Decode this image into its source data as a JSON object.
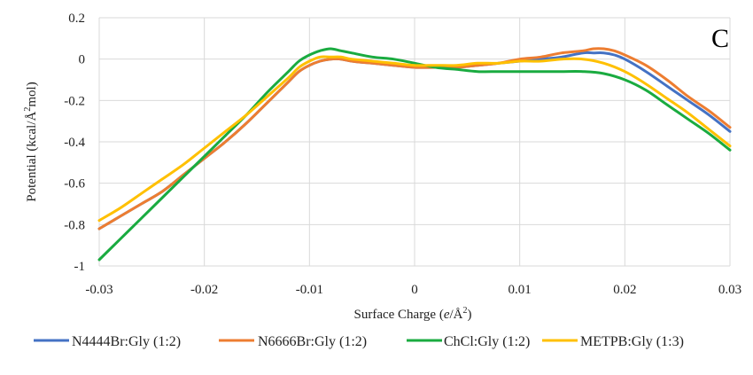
{
  "chart_data": {
    "type": "line",
    "panel_label": "C",
    "xlabel": "Surface Charge (e/Å²)",
    "xlabel_parts": {
      "pre": "Surface Charge (",
      "italic": "e",
      "mid": "/Å",
      "sup": "2",
      "post": ")"
    },
    "ylabel": "Potential (kcal/Å²mol)",
    "ylabel_parts": {
      "pre": "Potential (kcal/Å",
      "sup": "2",
      "post": "mol)"
    },
    "xlim": [
      -0.03,
      0.03
    ],
    "ylim": [
      -1,
      0.2
    ],
    "x_ticks": [
      -0.03,
      -0.02,
      -0.01,
      0,
      0.01,
      0.02,
      0.03
    ],
    "x_tick_labels": [
      "-0.03",
      "-0.02",
      "-0.01",
      "0",
      "0.01",
      "0.02",
      "0.03"
    ],
    "y_ticks": [
      0.2,
      0,
      -0.2,
      -0.4,
      -0.6,
      -0.8,
      -1
    ],
    "y_tick_labels": [
      "0.2",
      "0",
      "-0.2",
      "-0.4",
      "-0.6",
      "-0.8",
      "-1"
    ],
    "grid": true,
    "legend_position": "bottom",
    "series": [
      {
        "name": "N4444Br:Gly (1:2)",
        "color": "#4472c4",
        "x": [
          -0.03,
          -0.028,
          -0.026,
          -0.024,
          -0.022,
          -0.02,
          -0.018,
          -0.016,
          -0.014,
          -0.012,
          -0.011,
          -0.01,
          -0.009,
          -0.008,
          -0.007,
          -0.006,
          -0.004,
          -0.002,
          0,
          0.002,
          0.004,
          0.006,
          0.008,
          0.01,
          0.012,
          0.014,
          0.016,
          0.017,
          0.018,
          0.019,
          0.02,
          0.022,
          0.024,
          0.026,
          0.028,
          0.03
        ],
        "values": [
          -0.82,
          -0.76,
          -0.7,
          -0.64,
          -0.56,
          -0.48,
          -0.4,
          -0.31,
          -0.21,
          -0.11,
          -0.06,
          -0.03,
          -0.01,
          0.0,
          0.0,
          -0.01,
          -0.02,
          -0.03,
          -0.04,
          -0.04,
          -0.04,
          -0.03,
          -0.02,
          -0.01,
          0.0,
          0.01,
          0.03,
          0.03,
          0.03,
          0.02,
          0.0,
          -0.06,
          -0.13,
          -0.2,
          -0.27,
          -0.35
        ]
      },
      {
        "name": "N6666Br:Gly (1:2)",
        "color": "#ed7d31",
        "x": [
          -0.03,
          -0.028,
          -0.026,
          -0.024,
          -0.022,
          -0.02,
          -0.018,
          -0.016,
          -0.014,
          -0.012,
          -0.011,
          -0.01,
          -0.009,
          -0.008,
          -0.007,
          -0.006,
          -0.004,
          -0.002,
          0,
          0.002,
          0.004,
          0.006,
          0.008,
          0.01,
          0.012,
          0.014,
          0.016,
          0.017,
          0.018,
          0.019,
          0.02,
          0.022,
          0.024,
          0.026,
          0.028,
          0.03
        ],
        "values": [
          -0.82,
          -0.76,
          -0.7,
          -0.64,
          -0.56,
          -0.48,
          -0.4,
          -0.31,
          -0.21,
          -0.11,
          -0.06,
          -0.03,
          -0.01,
          0.0,
          0.0,
          -0.01,
          -0.02,
          -0.03,
          -0.04,
          -0.04,
          -0.04,
          -0.03,
          -0.02,
          0.0,
          0.01,
          0.03,
          0.04,
          0.05,
          0.05,
          0.04,
          0.02,
          -0.03,
          -0.1,
          -0.18,
          -0.25,
          -0.33
        ]
      },
      {
        "name": "ChCl:Gly (1:2)",
        "color": "#1aab40",
        "x": [
          -0.03,
          -0.028,
          -0.026,
          -0.024,
          -0.022,
          -0.02,
          -0.018,
          -0.016,
          -0.014,
          -0.012,
          -0.011,
          -0.01,
          -0.009,
          -0.008,
          -0.007,
          -0.006,
          -0.004,
          -0.002,
          0,
          0.002,
          0.004,
          0.006,
          0.008,
          0.01,
          0.012,
          0.014,
          0.016,
          0.018,
          0.02,
          0.022,
          0.024,
          0.026,
          0.028,
          0.03
        ],
        "values": [
          -0.97,
          -0.87,
          -0.77,
          -0.67,
          -0.57,
          -0.47,
          -0.37,
          -0.27,
          -0.16,
          -0.06,
          -0.01,
          0.02,
          0.04,
          0.05,
          0.04,
          0.03,
          0.01,
          0.0,
          -0.02,
          -0.04,
          -0.05,
          -0.06,
          -0.06,
          -0.06,
          -0.06,
          -0.06,
          -0.06,
          -0.07,
          -0.1,
          -0.15,
          -0.22,
          -0.29,
          -0.36,
          -0.44
        ]
      },
      {
        "name": "METPB:Gly (1:3)",
        "color": "#ffc000",
        "x": [
          -0.03,
          -0.028,
          -0.026,
          -0.024,
          -0.022,
          -0.02,
          -0.018,
          -0.016,
          -0.014,
          -0.012,
          -0.011,
          -0.01,
          -0.009,
          -0.008,
          -0.007,
          -0.006,
          -0.004,
          -0.002,
          0,
          0.002,
          0.004,
          0.006,
          0.008,
          0.01,
          0.012,
          0.014,
          0.016,
          0.018,
          0.02,
          0.022,
          0.024,
          0.026,
          0.028,
          0.03
        ],
        "values": [
          -0.78,
          -0.72,
          -0.65,
          -0.58,
          -0.51,
          -0.43,
          -0.35,
          -0.27,
          -0.18,
          -0.09,
          -0.04,
          -0.01,
          0.01,
          0.01,
          0.01,
          0.0,
          -0.01,
          -0.02,
          -0.03,
          -0.03,
          -0.03,
          -0.02,
          -0.02,
          -0.01,
          -0.01,
          0.0,
          0.0,
          -0.02,
          -0.06,
          -0.12,
          -0.19,
          -0.26,
          -0.34,
          -0.42
        ]
      }
    ]
  }
}
